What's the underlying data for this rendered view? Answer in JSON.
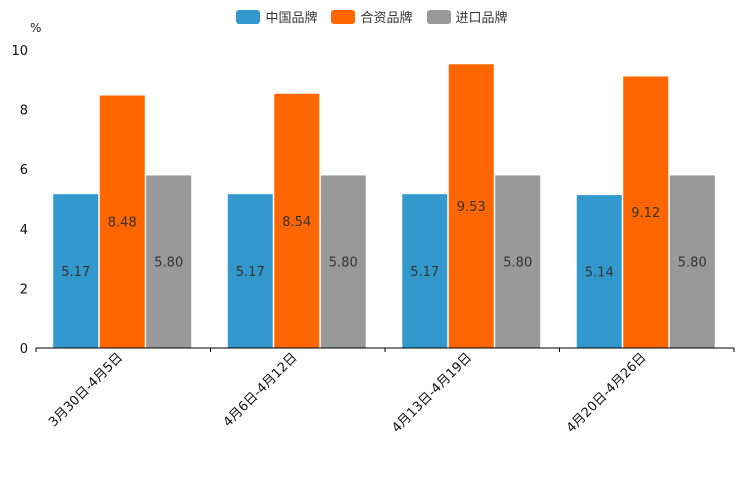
{
  "chart_data": {
    "type": "bar",
    "unit_label": "%",
    "categories": [
      "3月30日-4月5日",
      "4月6日-4月12日",
      "4月13日-4月19日",
      "4月20日-4月26日"
    ],
    "series": [
      {
        "name": "中国品牌",
        "color": "#3399cc",
        "values": [
          5.17,
          5.17,
          5.17,
          5.14
        ],
        "labels": [
          "5.17",
          "5.17",
          "5.17",
          "5.14"
        ]
      },
      {
        "name": "合资品牌",
        "color": "#ff6600",
        "values": [
          8.48,
          8.54,
          9.53,
          9.12
        ],
        "labels": [
          "8.48",
          "8.54",
          "9.53",
          "9.12"
        ]
      },
      {
        "name": "进口品牌",
        "color": "#999999",
        "values": [
          5.8,
          5.8,
          5.8,
          5.8
        ],
        "labels": [
          "5.80",
          "5.80",
          "5.80",
          "5.80"
        ]
      }
    ],
    "ylim": [
      0,
      10
    ],
    "yticks": [
      0,
      2,
      4,
      6,
      8,
      10
    ],
    "ytick_labels": [
      "0",
      "2",
      "4",
      "6",
      "8",
      "10"
    ],
    "legend_position": "top-center",
    "grid": false
  }
}
